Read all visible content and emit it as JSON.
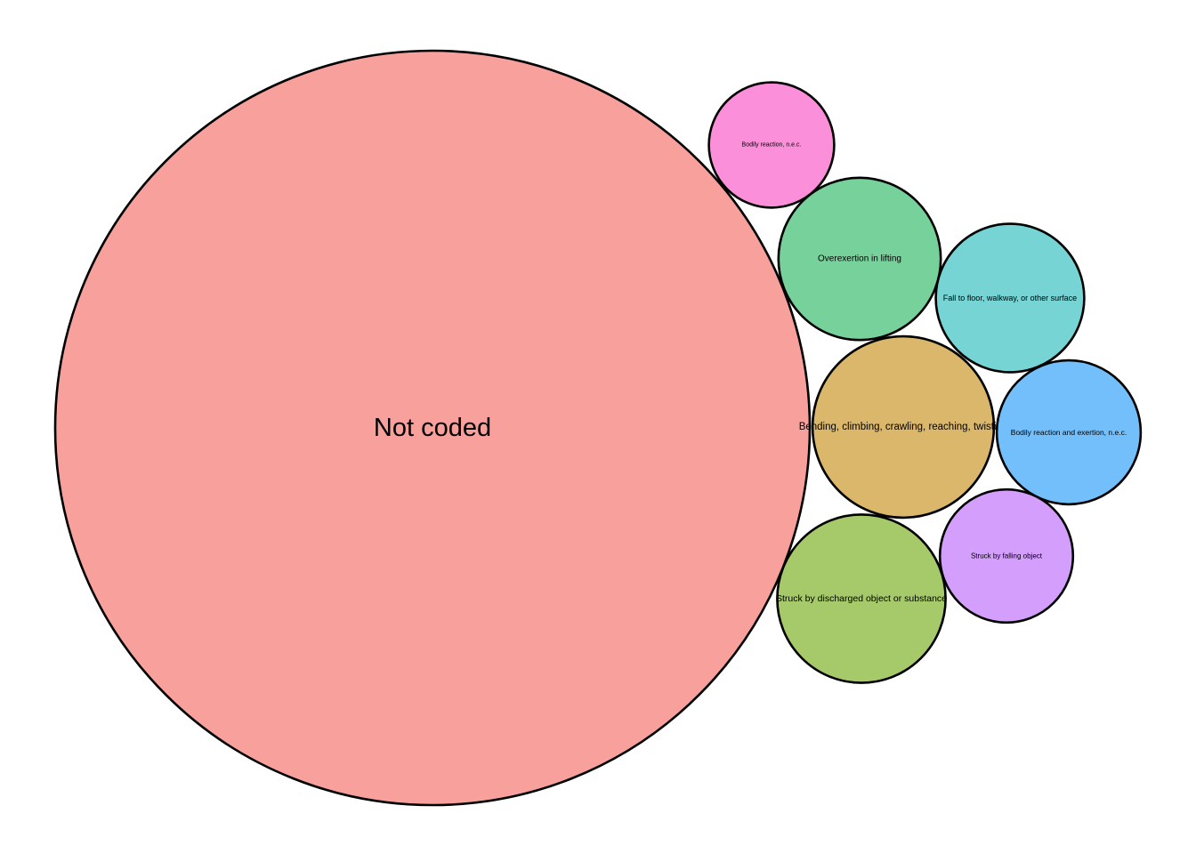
{
  "chart_data": {
    "type": "bubble",
    "stroke_color": "#000000",
    "items": [
      {
        "label": "Not coded",
        "value": 225,
        "color": "#F8A09B"
      },
      {
        "label": "Bending, climbing, crawling, reaching, twisting",
        "value": 13,
        "color": "#DBB76B"
      },
      {
        "label": "Struck by discharged object or substance",
        "value": 11.2,
        "color": "#A6C969"
      },
      {
        "label": "Overexertion in lifting",
        "value": 10.4,
        "color": "#77D19A"
      },
      {
        "label": "Fall to floor, walkway, or other surface",
        "value": 8.7,
        "color": "#76D4D4"
      },
      {
        "label": "Bodily reaction and exertion, n.e.c.",
        "value": 8.2,
        "color": "#73BFFC"
      },
      {
        "label": "Struck by falling object",
        "value": 7,
        "color": "#D39EFC"
      },
      {
        "label": "Bodily reaction, n.e.c.",
        "value": 6.2,
        "color": "#FC8FDA"
      }
    ]
  }
}
